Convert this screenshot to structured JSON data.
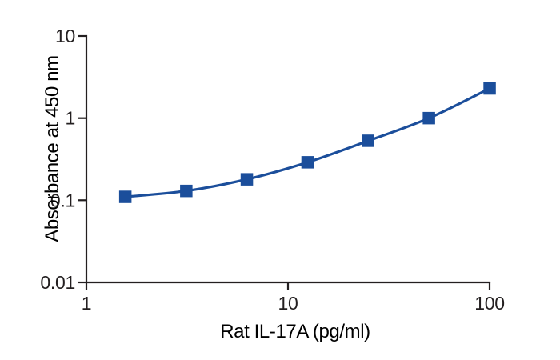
{
  "chart_data": {
    "type": "line",
    "title": "",
    "xlabel": "Rat IL-17A (pg/ml)",
    "ylabel": "Absorbance at 450 nm",
    "x_scale": "log",
    "y_scale": "log",
    "xlim": [
      1,
      100
    ],
    "ylim": [
      0.01,
      10
    ],
    "x_ticks": [
      1,
      10,
      100
    ],
    "x_tick_labels": [
      "1",
      "10",
      "100"
    ],
    "y_ticks": [
      0.01,
      0.1,
      1,
      10
    ],
    "y_tick_labels": [
      "0.01",
      "0.1",
      "1",
      "10"
    ],
    "grid": false,
    "legend": "none",
    "marker": "filled-square",
    "series": [
      {
        "x": [
          1.56,
          3.13,
          6.25,
          12.5,
          25,
          50,
          100
        ],
        "y": [
          0.11,
          0.13,
          0.18,
          0.29,
          0.53,
          1.0,
          2.3
        ]
      }
    ],
    "colors": {
      "line": "#1b4e9b",
      "marker": "#1b4e9b",
      "axis": "#231f20",
      "text": "#231f20",
      "background": "#ffffff"
    }
  }
}
